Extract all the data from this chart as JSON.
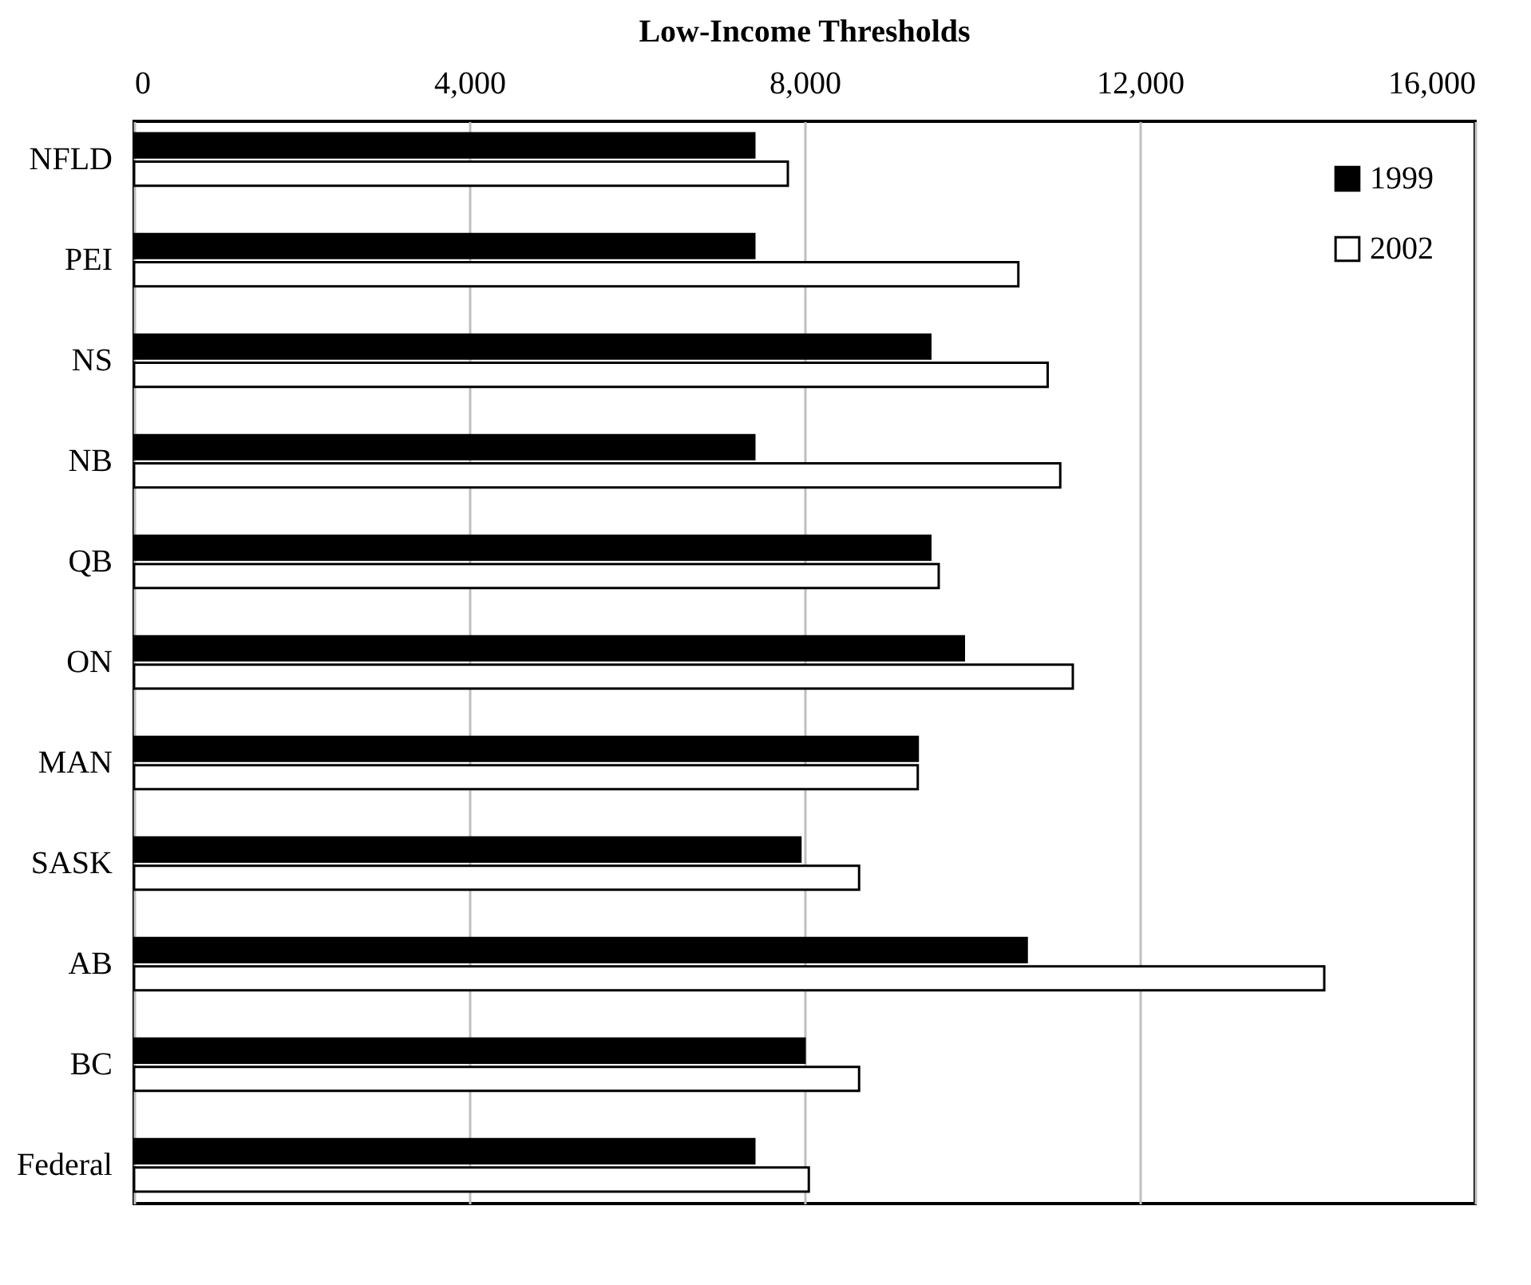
{
  "chart_data": {
    "type": "bar",
    "title": "Low-Income Thresholds",
    "orientation": "horizontal",
    "categories": [
      "NFLD",
      "PEI",
      "NS",
      "NB",
      "QB",
      "ON",
      "MAN",
      "SASK",
      "AB",
      "BC",
      "Federal"
    ],
    "series": [
      {
        "name": "1999",
        "color": "#000000",
        "values": [
          7400,
          7400,
          9500,
          7400,
          9500,
          9900,
          9350,
          7950,
          10650,
          8000,
          7400
        ]
      },
      {
        "name": "2002",
        "color": "#ffffff",
        "values": [
          7800,
          10550,
          10900,
          11050,
          9600,
          11200,
          9350,
          8650,
          14200,
          8650,
          8050
        ]
      }
    ],
    "xlim": [
      0,
      16000
    ],
    "xticks": [
      0,
      {
        "value": 4000,
        "label": "4,000"
      },
      {
        "value": 8000,
        "label": "8,000"
      },
      {
        "value": 12000,
        "label": "12,000"
      },
      {
        "value": 16000,
        "label": "16,000"
      }
    ],
    "grid": "x",
    "legend": "top right"
  }
}
